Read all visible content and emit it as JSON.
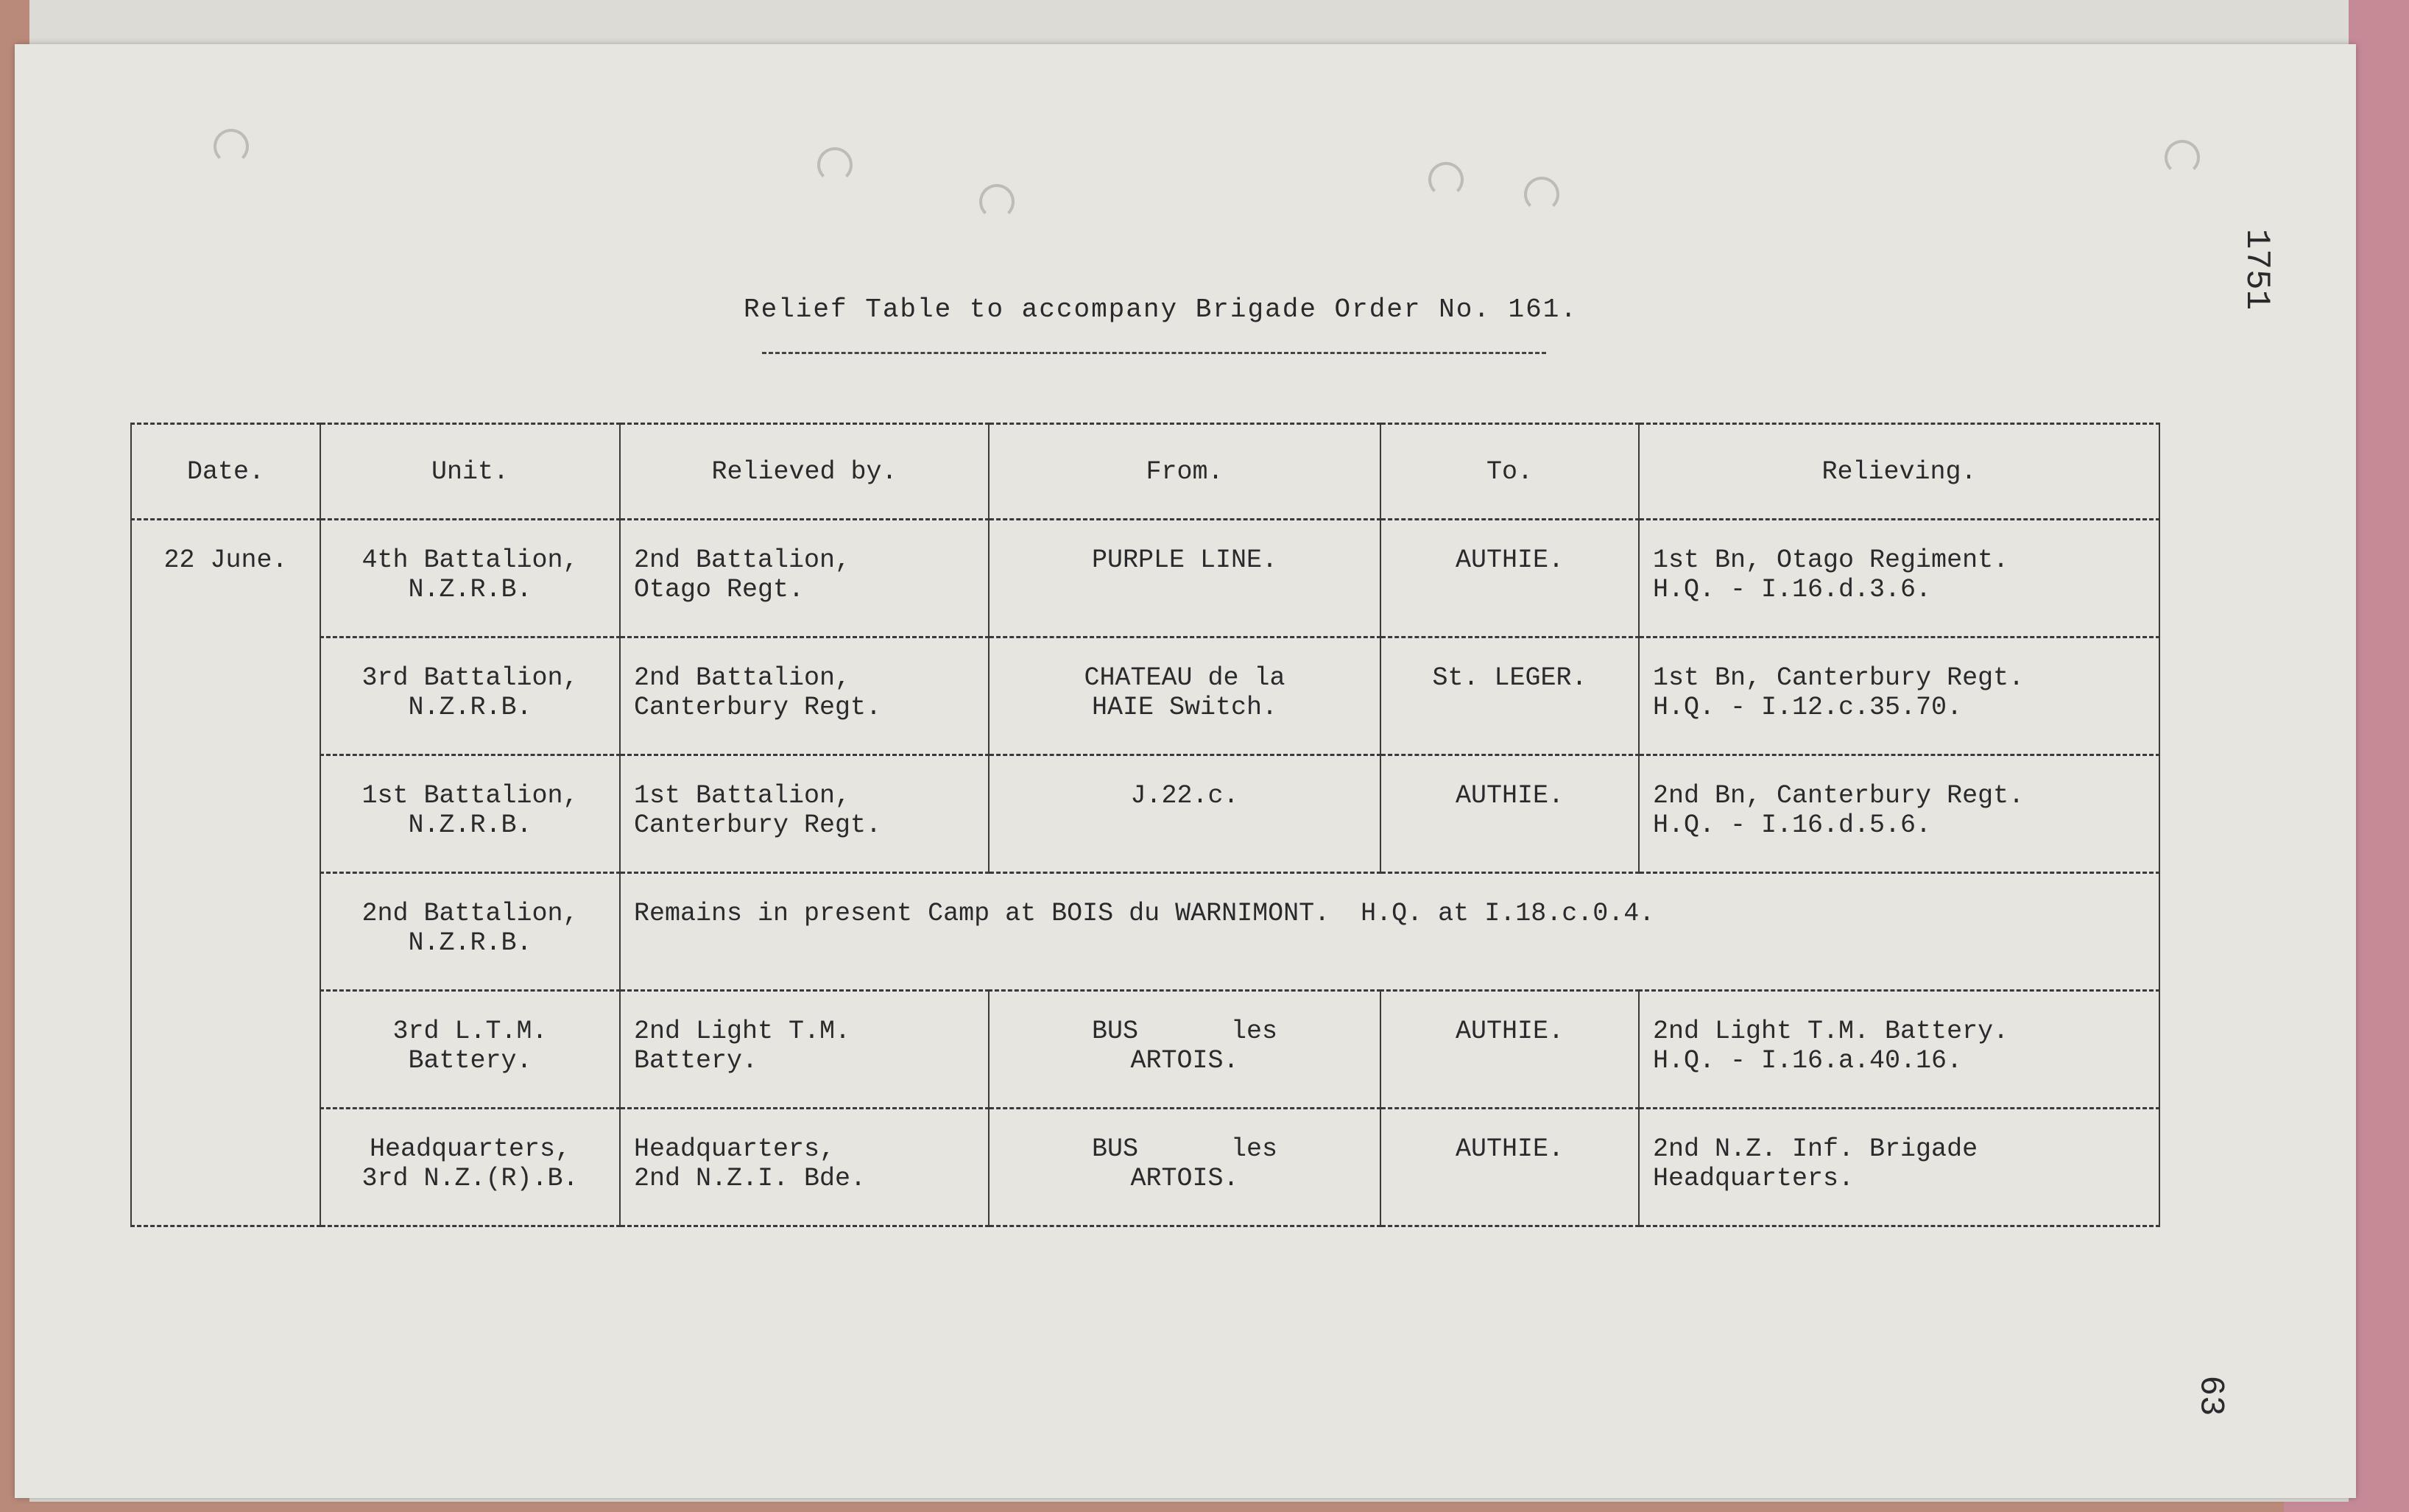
{
  "title": "Relief Table to accompany Brigade Order No. 161.",
  "headers": [
    "Date.",
    "Unit.",
    "Relieved by.",
    "From.",
    "To.",
    "Relieving."
  ],
  "date": "22 June.",
  "rows": [
    {
      "unit": [
        "4th Battalion,",
        "N.Z.R.B."
      ],
      "relieved_by": [
        "2nd Battalion,",
        "Otago Regt."
      ],
      "from": [
        "PURPLE LINE."
      ],
      "to": "AUTHIE.",
      "relieving": [
        "1st Bn, Otago Regiment.",
        "H.Q. - I.16.d.3.6."
      ]
    },
    {
      "unit": [
        "3rd Battalion,",
        "N.Z.R.B."
      ],
      "relieved_by": [
        "2nd Battalion,",
        "Canterbury Regt."
      ],
      "from": [
        "CHATEAU de la",
        "HAIE Switch."
      ],
      "to": "St. LEGER.",
      "relieving": [
        "1st Bn, Canterbury Regt.",
        "H.Q. - I.12.c.35.70."
      ]
    },
    {
      "unit": [
        "1st Battalion,",
        "N.Z.R.B."
      ],
      "relieved_by": [
        "1st Battalion,",
        "Canterbury Regt."
      ],
      "from": [
        "J.22.c."
      ],
      "to": "AUTHIE.",
      "relieving": [
        "2nd Bn, Canterbury Regt.",
        "H.Q. - I.16.d.5.6."
      ]
    },
    {
      "unit": [
        "2nd Battalion,",
        "N.Z.R.B."
      ],
      "remark": "Remains in present Camp at BOIS du WARNIMONT.  H.Q. at I.18.c.0.4."
    },
    {
      "unit": [
        "3rd L.T.M.",
        "Battery."
      ],
      "relieved_by": [
        "2nd Light T.M.",
        "Battery."
      ],
      "from": [
        "BUS      les",
        "ARTOIS."
      ],
      "to": "AUTHIE.",
      "relieving": [
        "2nd Light T.M. Battery.",
        "H.Q. - I.16.a.40.16."
      ]
    },
    {
      "unit": [
        "Headquarters,",
        "3rd N.Z.(R).B."
      ],
      "relieved_by": [
        "Headquarters,",
        "2nd N.Z.I. Bde."
      ],
      "from": [
        "BUS      les",
        "ARTOIS."
      ],
      "to": "AUTHIE.",
      "relieving": [
        "2nd N.Z. Inf. Brigade",
        "Headquarters."
      ]
    }
  ],
  "margin_numbers": {
    "folio": "1751",
    "page": "63"
  }
}
